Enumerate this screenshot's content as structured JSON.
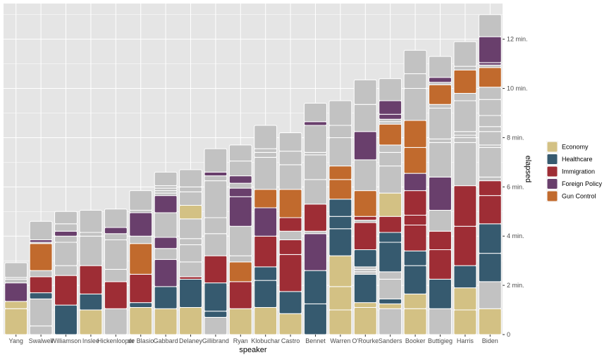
{
  "chart_data": {
    "type": "bar",
    "stacked": true,
    "xlabel": "speaker",
    "ylabel": "elapsed",
    "ylim": [
      0,
      13.45
    ],
    "y_ticks": [
      0,
      2,
      4,
      6,
      8,
      10,
      12
    ],
    "y_tick_labels": [
      "0",
      "2 min.",
      "4 min.",
      "6 min.",
      "8 min.",
      "10 min.",
      "12 min."
    ],
    "grid": true,
    "legend_position": "right",
    "panel_background": "#e5e5e5",
    "grid_color": "#ffffff",
    "categories": [
      "Yang",
      "Swalwell",
      "Williamson",
      "Inslee",
      "Hickenlooper",
      "de Blasio",
      "Gabbard",
      "Delaney",
      "Gillibrand",
      "Ryan",
      "Klobuchar",
      "Castro",
      "Bennet",
      "Warren",
      "O'Rourke",
      "Sanders",
      "Booker",
      "Buttigieg",
      "Harris",
      "Biden"
    ],
    "topic_colors": {
      "Economy": "#d3c184",
      "Healthcare": "#365a6f",
      "Immigration": "#9e2d35",
      "Foreign Policy": "#693f6c",
      "Gun Control": "#c16a2d",
      "Other": "#c2c2c2"
    },
    "legend": [
      "Economy",
      "Healthcare",
      "Immigration",
      "Foreign Policy",
      "Gun Control"
    ],
    "bars": [
      {
        "speaker": "Yang",
        "segments": [
          [
            "Economy",
            1.05
          ],
          [
            "Economy",
            0.3
          ],
          [
            "Foreign Policy",
            0.75
          ],
          [
            "Other",
            0.15
          ],
          [
            "Other",
            0.07
          ],
          [
            "Other",
            0.6
          ]
        ]
      },
      {
        "speaker": "Swalwell",
        "segments": [
          [
            "Other",
            0.35
          ],
          [
            "Other",
            1.1
          ],
          [
            "Healthcare",
            0.25
          ],
          [
            "Immigration",
            0.65
          ],
          [
            "Other",
            0.25
          ],
          [
            "Gun Control",
            1.1
          ],
          [
            "Other",
            0.05
          ],
          [
            "Foreign Policy",
            0.1
          ],
          [
            "Other",
            0.75
          ]
        ]
      },
      {
        "speaker": "Williamson",
        "segments": [
          [
            "Healthcare",
            1.2
          ],
          [
            "Immigration",
            1.2
          ],
          [
            "Other",
            0.4
          ],
          [
            "Other",
            0.95
          ],
          [
            "Other",
            0.25
          ],
          [
            "Foreign Policy",
            0.2
          ],
          [
            "Other",
            0.3
          ],
          [
            "Other",
            0.5
          ]
        ]
      },
      {
        "speaker": "Inslee",
        "segments": [
          [
            "Economy",
            1.0
          ],
          [
            "Healthcare",
            0.65
          ],
          [
            "Immigration",
            1.15
          ],
          [
            "Other",
            1.2
          ],
          [
            "Other",
            0.15
          ],
          [
            "Other",
            0.9
          ]
        ]
      },
      {
        "speaker": "Hickenlooper",
        "segments": [
          [
            "Other",
            1.05
          ],
          [
            "Immigration",
            1.1
          ],
          [
            "Other",
            0.5
          ],
          [
            "Other",
            1.2
          ],
          [
            "Other",
            0.25
          ],
          [
            "Foreign Policy",
            0.25
          ],
          [
            "Other",
            0.75
          ]
        ]
      },
      {
        "speaker": "de Blasio",
        "segments": [
          [
            "Economy",
            1.1
          ],
          [
            "Healthcare",
            0.2
          ],
          [
            "Immigration",
            1.15
          ],
          [
            "Gun Control",
            1.25
          ],
          [
            "Other",
            0.3
          ],
          [
            "Foreign Policy",
            0.95
          ],
          [
            "Other",
            0.1
          ],
          [
            "Other",
            0.8
          ]
        ]
      },
      {
        "speaker": "Gabbard",
        "segments": [
          [
            "Economy",
            1.05
          ],
          [
            "Healthcare",
            0.9
          ],
          [
            "Foreign Policy",
            1.1
          ],
          [
            "Other",
            0.45
          ],
          [
            "Foreign Policy",
            0.45
          ],
          [
            "Other",
            1.0
          ],
          [
            "Foreign Policy",
            0.7
          ],
          [
            "Other",
            0.1
          ],
          [
            "Other",
            0.1
          ],
          [
            "Other",
            0.1
          ],
          [
            "Other",
            0.1
          ],
          [
            "Other",
            0.55
          ]
        ]
      },
      {
        "speaker": "Delaney",
        "segments": [
          [
            "Economy",
            1.1
          ],
          [
            "Healthcare",
            1.15
          ],
          [
            "Immigration",
            0.1
          ],
          [
            "Other",
            0.6
          ],
          [
            "Other",
            0.7
          ],
          [
            "Other",
            0.25
          ],
          [
            "Other",
            0.8
          ],
          [
            "Economy",
            0.55
          ],
          [
            "Other",
            0.55
          ],
          [
            "Other",
            0.2
          ],
          [
            "Other",
            0.7
          ]
        ]
      },
      {
        "speaker": "Gillibrand",
        "segments": [
          [
            "Other",
            0.7
          ],
          [
            "Healthcare",
            0.25
          ],
          [
            "Healthcare",
            1.15
          ],
          [
            "Immigration",
            1.1
          ],
          [
            "Other",
            0.9
          ],
          [
            "Other",
            0.65
          ],
          [
            "Other",
            1.5
          ],
          [
            "Other",
            0.2
          ],
          [
            "Foreign Policy",
            0.15
          ],
          [
            "Other",
            0.95
          ]
        ]
      },
      {
        "speaker": "Ryan",
        "segments": [
          [
            "Economy",
            1.05
          ],
          [
            "Immigration",
            1.1
          ],
          [
            "Gun Control",
            0.8
          ],
          [
            "Other",
            0.25
          ],
          [
            "Other",
            1.2
          ],
          [
            "Foreign Policy",
            1.2
          ],
          [
            "Foreign Policy",
            0.35
          ],
          [
            "Other",
            0.2
          ],
          [
            "Foreign Policy",
            0.3
          ],
          [
            "Other",
            0.6
          ],
          [
            "Other",
            0.65
          ]
        ]
      },
      {
        "speaker": "Klobuchar",
        "segments": [
          [
            "Economy",
            1.1
          ],
          [
            "Healthcare",
            1.1
          ],
          [
            "Healthcare",
            0.55
          ],
          [
            "Immigration",
            1.25
          ],
          [
            "Foreign Policy",
            1.15
          ],
          [
            "Gun Control",
            0.75
          ],
          [
            "Other",
            1.3
          ],
          [
            "Other",
            0.2
          ],
          [
            "Other",
            0.15
          ],
          [
            "Other",
            0.95
          ]
        ]
      },
      {
        "speaker": "Castro",
        "segments": [
          [
            "Economy",
            0.85
          ],
          [
            "Healthcare",
            0.9
          ],
          [
            "Immigration",
            1.5
          ],
          [
            "Immigration",
            0.6
          ],
          [
            "Other",
            0.35
          ],
          [
            "Immigration",
            0.55
          ],
          [
            "Gun Control",
            1.15
          ],
          [
            "Other",
            1.0
          ],
          [
            "Other",
            0.55
          ],
          [
            "Other",
            0.75
          ]
        ]
      },
      {
        "speaker": "Bennet",
        "segments": [
          [
            "Healthcare",
            1.25
          ],
          [
            "Healthcare",
            1.35
          ],
          [
            "Foreign Policy",
            1.5
          ],
          [
            "Other",
            0.1
          ],
          [
            "Immigration",
            1.1
          ],
          [
            "Other",
            1.0
          ],
          [
            "Other",
            1.0
          ],
          [
            "Other",
            0.1
          ],
          [
            "Other",
            1.1
          ],
          [
            "Foreign Policy",
            0.15
          ],
          [
            "Other",
            0.75
          ]
        ]
      },
      {
        "speaker": "Warren",
        "segments": [
          [
            "Economy",
            1.0
          ],
          [
            "Economy",
            0.95
          ],
          [
            "Economy",
            1.25
          ],
          [
            "Healthcare",
            1.1
          ],
          [
            "Healthcare",
            0.5
          ],
          [
            "Healthcare",
            0.7
          ],
          [
            "Gun Control",
            0.8
          ],
          [
            "Gun Control",
            0.55
          ],
          [
            "Other",
            1.15
          ],
          [
            "Other",
            0.5
          ],
          [
            "Other",
            1.0
          ]
        ]
      },
      {
        "speaker": "O'Rourke",
        "segments": [
          [
            "Economy",
            1.1
          ],
          [
            "Economy",
            0.2
          ],
          [
            "Healthcare",
            1.15
          ],
          [
            "Other",
            0.1
          ],
          [
            "Other",
            0.1
          ],
          [
            "Other",
            0.1
          ],
          [
            "Healthcare",
            0.7
          ],
          [
            "Immigration",
            1.1
          ],
          [
            "Other",
            0.1
          ],
          [
            "Immigration",
            0.15
          ],
          [
            "Gun Control",
            1.05
          ],
          [
            "Other",
            1.25
          ],
          [
            "Foreign Policy",
            1.15
          ],
          [
            "Other",
            1.1
          ],
          [
            "Other",
            1.0
          ]
        ]
      },
      {
        "speaker": "Sanders",
        "segments": [
          [
            "Other",
            1.05
          ],
          [
            "Economy",
            0.2
          ],
          [
            "Healthcare",
            0.2
          ],
          [
            "Other",
            0.8
          ],
          [
            "Other",
            0.3
          ],
          [
            "Healthcare",
            1.2
          ],
          [
            "Healthcare",
            0.4
          ],
          [
            "Immigration",
            0.65
          ],
          [
            "Economy",
            0.95
          ],
          [
            "Other",
            1.1
          ],
          [
            "Other",
            0.55
          ],
          [
            "Other",
            0.3
          ],
          [
            "Gun Control",
            0.85
          ],
          [
            "Other",
            0.1
          ],
          [
            "Other",
            0.1
          ],
          [
            "Foreign Policy",
            0.2
          ],
          [
            "Foreign Policy",
            0.55
          ],
          [
            "Other",
            0.9
          ]
        ]
      },
      {
        "speaker": "Booker",
        "segments": [
          [
            "Economy",
            1.05
          ],
          [
            "Economy",
            0.6
          ],
          [
            "Healthcare",
            1.15
          ],
          [
            "Healthcare",
            0.6
          ],
          [
            "Immigration",
            1.05
          ],
          [
            "Immigration",
            0.4
          ],
          [
            "Immigration",
            1.0
          ],
          [
            "Foreign Policy",
            0.7
          ],
          [
            "Gun Control",
            1.05
          ],
          [
            "Gun Control",
            1.1
          ],
          [
            "Other",
            1.3
          ],
          [
            "Other",
            0.6
          ],
          [
            "Other",
            0.95
          ]
        ]
      },
      {
        "speaker": "Buttigieg",
        "segments": [
          [
            "Other",
            1.05
          ],
          [
            "Healthcare",
            1.2
          ],
          [
            "Immigration",
            1.2
          ],
          [
            "Immigration",
            0.75
          ],
          [
            "Other",
            0.85
          ],
          [
            "Foreign Policy",
            1.35
          ],
          [
            "Other",
            1.4
          ],
          [
            "Other",
            0.15
          ],
          [
            "Other",
            1.25
          ],
          [
            "Other",
            0.15
          ],
          [
            "Gun Control",
            0.8
          ],
          [
            "Other",
            0.1
          ],
          [
            "Foreign Policy",
            0.2
          ],
          [
            "Other",
            0.85
          ]
        ]
      },
      {
        "speaker": "Harris",
        "segments": [
          [
            "Economy",
            1.0
          ],
          [
            "Economy",
            0.9
          ],
          [
            "Healthcare",
            0.9
          ],
          [
            "Immigration",
            1.6
          ],
          [
            "Immigration",
            1.65
          ],
          [
            "Other",
            1.75
          ],
          [
            "Other",
            0.2
          ],
          [
            "Other",
            0.1
          ],
          [
            "Other",
            0.15
          ],
          [
            "Other",
            1.25
          ],
          [
            "Other",
            0.3
          ],
          [
            "Gun Control",
            0.95
          ],
          [
            "Other",
            0.15
          ],
          [
            "Other",
            1.0
          ]
        ]
      },
      {
        "speaker": "Biden",
        "segments": [
          [
            "Economy",
            1.05
          ],
          [
            "Other",
            1.1
          ],
          [
            "Healthcare",
            1.15
          ],
          [
            "Healthcare",
            1.2
          ],
          [
            "Immigration",
            1.15
          ],
          [
            "Immigration",
            0.6
          ],
          [
            "Other",
            0.15
          ],
          [
            "Other",
            1.2
          ],
          [
            "Other",
            0.1
          ],
          [
            "Other",
            0.55
          ],
          [
            "Other",
            0.2
          ],
          [
            "Other",
            0.45
          ],
          [
            "Other",
            0.65
          ],
          [
            "Other",
            0.5
          ],
          [
            "Gun Control",
            0.8
          ],
          [
            "Other",
            0.1
          ],
          [
            "Foreign Policy",
            0.1
          ],
          [
            "Foreign Policy",
            1.05
          ],
          [
            "Other",
            0.9
          ]
        ]
      }
    ]
  }
}
